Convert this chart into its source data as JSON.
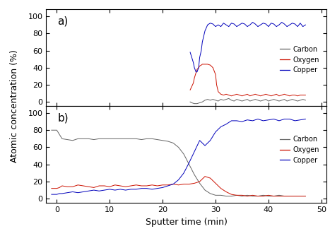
{
  "xlabel": "Sputter time (min)",
  "ylabel": "Atomic concentration (%)",
  "xlim": [
    -2,
    51
  ],
  "ylim_a": [
    -5,
    108
  ],
  "ylim_b": [
    -5,
    108
  ],
  "xticks": [
    0,
    10,
    20,
    30,
    40,
    50
  ],
  "yticks": [
    0,
    20,
    40,
    60,
    80,
    100
  ],
  "colors": {
    "carbon": "#636363",
    "oxygen": "#cc1100",
    "copper": "#0000bb"
  },
  "panel_a_label": "a)",
  "panel_b_label": "b)",
  "a_carbon_x": [
    25.2,
    25.5,
    26.0,
    26.5,
    27.0,
    27.5,
    28.0,
    28.5,
    29.0,
    29.5,
    30.0,
    30.5,
    31.0,
    31.5,
    32.0,
    32.5,
    33.0,
    33.5,
    34.0,
    34.5,
    35.0,
    35.5,
    36.0,
    36.5,
    37.0,
    37.5,
    38.0,
    38.5,
    39.0,
    39.5,
    40.0,
    40.5,
    41.0,
    41.5,
    42.0,
    42.5,
    43.0,
    43.5,
    44.0,
    44.5,
    45.0,
    45.5,
    46.0,
    46.5,
    47.0
  ],
  "a_carbon_y": [
    0,
    -1,
    -2,
    -2,
    -1,
    0,
    2,
    3,
    2,
    3,
    2,
    1,
    3,
    2,
    3,
    4,
    2,
    1,
    3,
    2,
    1,
    2,
    3,
    1,
    2,
    3,
    2,
    1,
    2,
    3,
    1,
    2,
    3,
    2,
    1,
    2,
    3,
    1,
    2,
    3,
    2,
    1,
    2,
    3,
    2
  ],
  "a_oxygen_x": [
    25.2,
    25.5,
    25.8,
    26.0,
    26.3,
    26.5,
    26.8,
    27.0,
    27.3,
    27.5,
    28.0,
    28.5,
    29.0,
    29.5,
    30.0,
    30.2,
    30.5,
    31.0,
    31.5,
    32.0,
    32.5,
    33.0,
    33.5,
    34.0,
    34.5,
    35.0,
    35.5,
    36.0,
    36.5,
    37.0,
    37.5,
    38.0,
    38.5,
    39.0,
    39.5,
    40.0,
    40.5,
    41.0,
    41.5,
    42.0,
    42.5,
    43.0,
    43.5,
    44.0,
    44.5,
    45.0,
    45.5,
    46.0,
    46.5,
    47.0
  ],
  "a_oxygen_y": [
    14,
    18,
    22,
    28,
    34,
    38,
    40,
    42,
    43,
    44,
    44,
    44,
    43,
    40,
    32,
    20,
    12,
    9,
    8,
    9,
    8,
    7,
    8,
    9,
    8,
    7,
    8,
    9,
    7,
    8,
    9,
    8,
    7,
    8,
    9,
    8,
    7,
    8,
    9,
    7,
    8,
    9,
    8,
    7,
    8,
    8,
    7,
    8,
    8,
    8
  ],
  "a_copper_x": [
    25.2,
    25.5,
    25.8,
    26.0,
    26.3,
    26.5,
    26.8,
    27.0,
    27.3,
    27.5,
    28.0,
    28.5,
    29.0,
    29.5,
    30.0,
    30.5,
    31.0,
    31.5,
    32.0,
    32.5,
    33.0,
    33.5,
    34.0,
    34.5,
    35.0,
    35.5,
    36.0,
    36.5,
    37.0,
    37.5,
    38.0,
    38.5,
    39.0,
    39.5,
    40.0,
    40.5,
    41.0,
    41.5,
    42.0,
    42.5,
    43.0,
    43.5,
    44.0,
    44.5,
    45.0,
    45.5,
    46.0,
    46.5,
    47.0
  ],
  "a_copper_y": [
    58,
    52,
    46,
    40,
    35,
    35,
    40,
    52,
    60,
    70,
    83,
    90,
    92,
    91,
    88,
    90,
    88,
    92,
    90,
    88,
    92,
    91,
    88,
    90,
    92,
    91,
    88,
    90,
    93,
    91,
    88,
    90,
    92,
    91,
    88,
    92,
    91,
    88,
    90,
    93,
    91,
    88,
    90,
    92,
    91,
    88,
    92,
    88,
    90
  ],
  "b_carbon_x": [
    -1,
    0,
    0.5,
    1,
    2,
    3,
    4,
    5,
    6,
    7,
    8,
    9,
    10,
    11,
    12,
    13,
    14,
    15,
    16,
    17,
    18,
    19,
    20,
    21,
    22,
    23,
    24,
    25,
    26,
    27,
    28,
    29,
    30,
    31,
    32,
    33,
    34,
    35,
    36,
    37,
    38,
    39,
    40,
    41,
    42,
    43,
    44,
    45,
    46,
    47
  ],
  "b_carbon_y": [
    80,
    80,
    75,
    70,
    69,
    68,
    70,
    70,
    70,
    69,
    70,
    70,
    70,
    70,
    70,
    70,
    70,
    70,
    69,
    70,
    70,
    69,
    68,
    67,
    65,
    60,
    52,
    40,
    28,
    18,
    10,
    6,
    4,
    4,
    3,
    3,
    4,
    3,
    4,
    3,
    3,
    4,
    3,
    3,
    4,
    3,
    3,
    3,
    3,
    3
  ],
  "b_oxygen_x": [
    -1,
    0,
    0.5,
    1,
    2,
    3,
    4,
    5,
    6,
    7,
    8,
    9,
    10,
    11,
    12,
    13,
    14,
    15,
    16,
    17,
    18,
    19,
    20,
    21,
    22,
    23,
    24,
    25,
    26,
    27,
    28,
    29,
    30,
    31,
    32,
    33,
    34,
    35,
    36,
    37,
    38,
    39,
    40,
    41,
    42,
    43,
    44,
    45,
    46,
    47
  ],
  "b_oxygen_y": [
    12,
    12,
    13,
    15,
    14,
    14,
    16,
    15,
    14,
    13,
    15,
    15,
    14,
    16,
    15,
    14,
    15,
    16,
    15,
    15,
    16,
    15,
    16,
    16,
    17,
    16,
    17,
    17,
    18,
    20,
    26,
    24,
    18,
    12,
    8,
    5,
    4,
    4,
    3,
    4,
    3,
    3,
    4,
    3,
    3,
    3,
    3,
    3,
    3,
    3
  ],
  "b_copper_x": [
    -1,
    0,
    0.5,
    1,
    2,
    3,
    4,
    5,
    6,
    7,
    8,
    9,
    10,
    11,
    12,
    13,
    14,
    15,
    16,
    17,
    18,
    19,
    20,
    21,
    22,
    23,
    24,
    25,
    26,
    27,
    28,
    29,
    30,
    31,
    32,
    33,
    34,
    35,
    36,
    37,
    38,
    39,
    40,
    41,
    42,
    43,
    44,
    45,
    46,
    47
  ],
  "b_copper_y": [
    5,
    5,
    6,
    6,
    7,
    8,
    7,
    8,
    9,
    10,
    9,
    10,
    11,
    10,
    11,
    10,
    11,
    11,
    12,
    12,
    11,
    12,
    13,
    15,
    17,
    22,
    30,
    42,
    55,
    68,
    62,
    68,
    78,
    84,
    87,
    91,
    91,
    90,
    92,
    91,
    93,
    91,
    92,
    93,
    91,
    93,
    93,
    91,
    92,
    93
  ]
}
